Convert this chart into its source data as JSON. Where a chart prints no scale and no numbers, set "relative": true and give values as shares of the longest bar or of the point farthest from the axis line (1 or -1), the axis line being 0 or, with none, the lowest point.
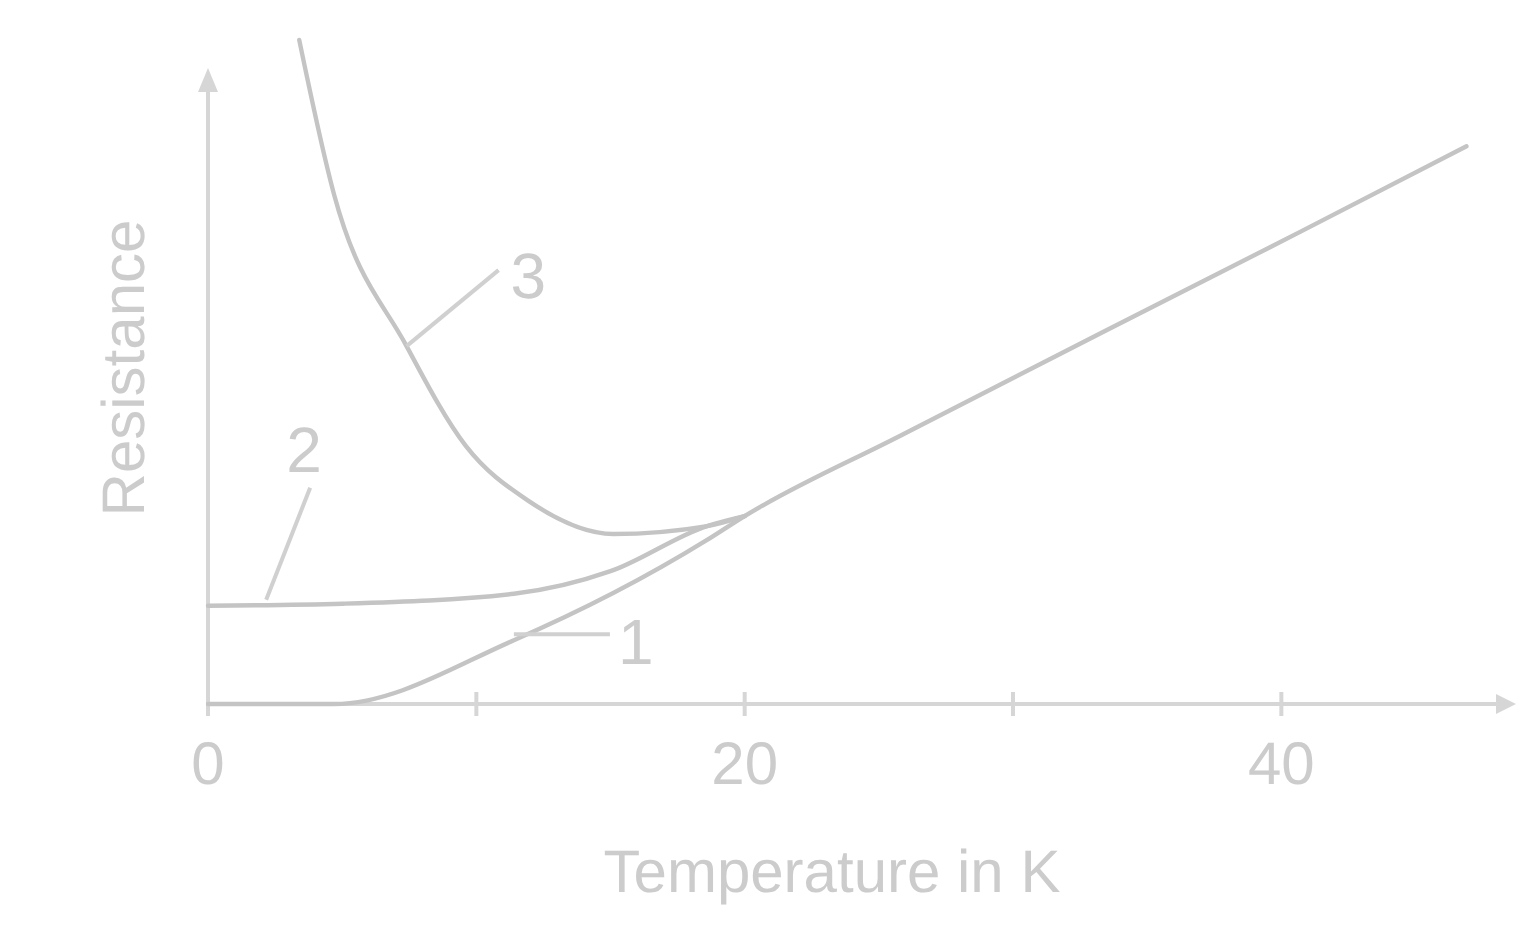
{
  "chart_data": {
    "type": "line",
    "relative": true,
    "xlabel": "Temperature in K",
    "ylabel": "Resistance",
    "xlim": [
      0,
      48
    ],
    "xticks": [
      0,
      {
        "value": 10,
        "label": null
      },
      20,
      {
        "value": 30,
        "label": null
      },
      40
    ],
    "grid": false,
    "legend": "center",
    "line_style": "solid",
    "marker": "none",
    "series": [
      {
        "name": "1",
        "color": "#c4c4c4",
        "x": [
          0,
          4.7,
          11.4,
          18.6,
          20,
          25.8,
          33.3,
          40.7,
          46.9
        ],
        "values": [
          0,
          0,
          0.096,
          0.247,
          0.283,
          0.404,
          0.559,
          0.711,
          0.84
        ]
      },
      {
        "name": "2",
        "color": "#c4c4c4",
        "x": [
          0,
          5,
          11.4,
          15,
          18.6,
          20
        ],
        "values": [
          0.148,
          0.151,
          0.166,
          0.2,
          0.268,
          0.283
        ]
      },
      {
        "name": "3",
        "color": "#c4c4c4",
        "x": [
          3.4,
          4.7,
          7.4,
          9.6,
          11.9,
          15.1,
          18.6,
          20
        ],
        "values": [
          1,
          0.767,
          0.539,
          0.389,
          0.307,
          0.256,
          0.268,
          0.283
        ]
      }
    ]
  }
}
